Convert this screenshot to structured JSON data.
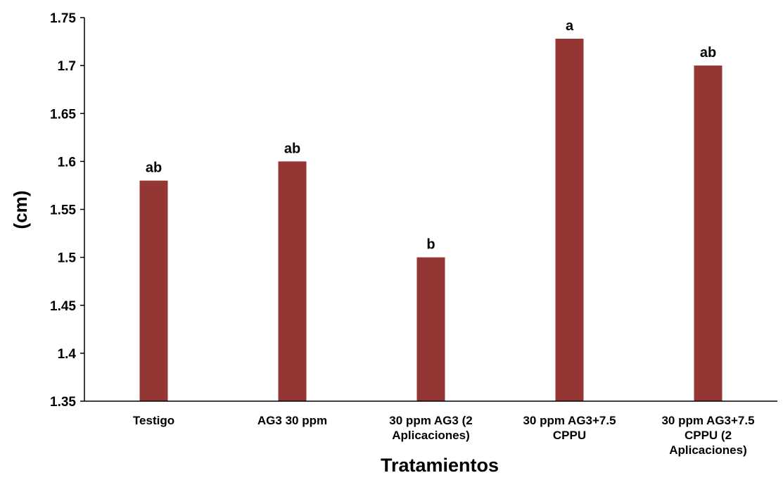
{
  "chart_data": {
    "type": "bar",
    "title": "",
    "xlabel": "Tratamientos",
    "ylabel": "(cm)",
    "ylim": [
      1.35,
      1.75
    ],
    "yticks": [
      "1.35",
      "1.4",
      "1.45",
      "1.5",
      "1.55",
      "1.6",
      "1.65",
      "1.7",
      "1.75"
    ],
    "categories": [
      [
        "Testigo"
      ],
      [
        "AG3 30 ppm"
      ],
      [
        "30 ppm AG3 (2",
        "Aplicaciones)"
      ],
      [
        "30 ppm AG3+7.5",
        "CPPU"
      ],
      [
        "30 ppm AG3+7.5",
        "CPPU (2",
        "Aplicaciones)"
      ]
    ],
    "values": [
      1.58,
      1.6,
      1.5,
      1.728,
      1.7
    ],
    "annotations": [
      "ab",
      "ab",
      "b",
      "a",
      "ab"
    ],
    "bar_color": "#943634",
    "grid": false,
    "legend": "none"
  }
}
